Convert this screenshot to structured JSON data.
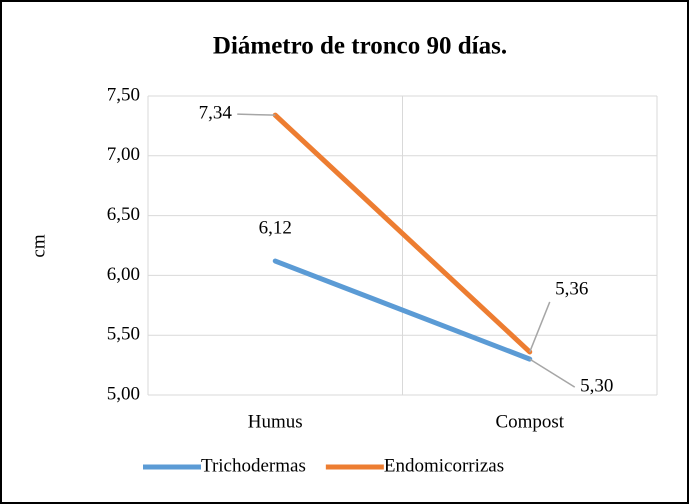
{
  "chart_data": {
    "type": "line",
    "title": "Diámetro de tronco 90 días.",
    "y_label": "cm",
    "categories": [
      "Humus",
      "Compost"
    ],
    "series": [
      {
        "name": "Trichodermas",
        "color": "#5b9bd5",
        "values": [
          6.12,
          5.3
        ],
        "value_labels": [
          "6,12",
          "5,30"
        ]
      },
      {
        "name": "Endomicorrizas",
        "color": "#ed7d31",
        "values": [
          7.34,
          5.36
        ],
        "value_labels": [
          "7,34",
          "5,36"
        ]
      }
    ],
    "ylim": [
      5,
      7.5
    ],
    "yticks": [
      {
        "value": 5,
        "label": "5,00"
      },
      {
        "value": 5.5,
        "label": "5,50"
      },
      {
        "value": 6,
        "label": "6,00"
      },
      {
        "value": 6.5,
        "label": "6,50"
      },
      {
        "value": 7,
        "label": "7,00"
      },
      {
        "value": 7.5,
        "label": "7,50"
      }
    ],
    "grid": true,
    "legend": "bottom"
  }
}
